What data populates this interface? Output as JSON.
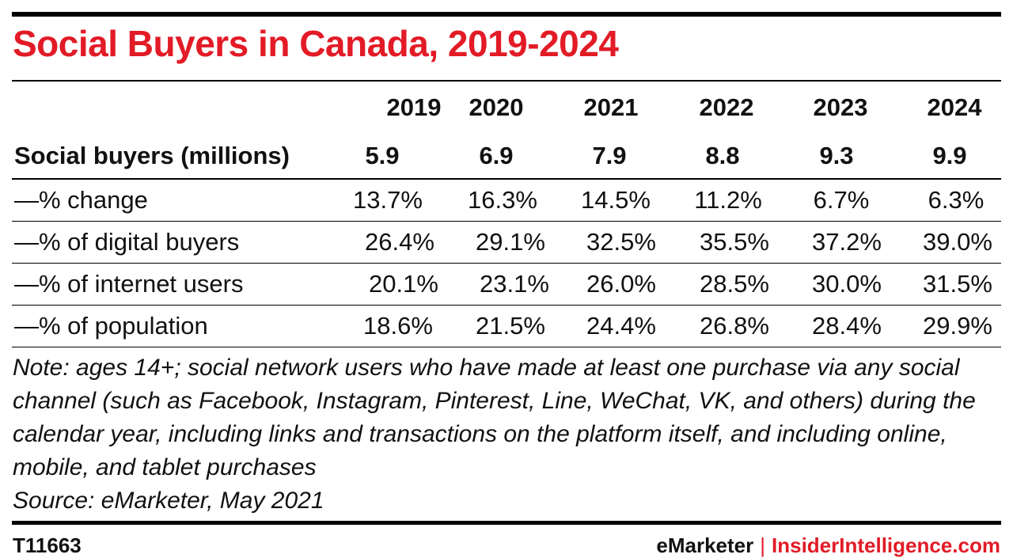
{
  "chart_data": {
    "type": "table",
    "title": "Social Buyers in Canada, 2019-2024",
    "columns": [
      "2019",
      "2020",
      "2021",
      "2022",
      "2023",
      "2024"
    ],
    "rows": [
      {
        "label": "Social buyers (millions)",
        "values": [
          "5.9",
          "6.9",
          "7.9",
          "8.8",
          "9.3",
          "9.9"
        ]
      },
      {
        "label": "—% change",
        "values": [
          "13.7%",
          "16.3%",
          "14.5%",
          "11.2%",
          "6.7%",
          "6.3%"
        ]
      },
      {
        "label": "—% of digital buyers",
        "values": [
          "26.4%",
          "29.1%",
          "32.5%",
          "35.5%",
          "37.2%",
          "39.0%"
        ]
      },
      {
        "label": "—% of internet users",
        "values": [
          "20.1%",
          "23.1%",
          "26.0%",
          "28.5%",
          "30.0%",
          "31.5%"
        ]
      },
      {
        "label": "—% of population",
        "values": [
          "18.6%",
          "21.5%",
          "24.4%",
          "26.8%",
          "28.4%",
          "29.9%"
        ]
      }
    ],
    "note": "Note: ages 14+; social network users who have made at least one purchase via any social channel (such as Facebook, Instagram, Pinterest, Line, WeChat, VK, and others) during the calendar year, including links and transactions on the platform itself, and including online, mobile, and tablet purchases",
    "source": "Source: eMarketer, May 2021"
  },
  "footer": {
    "id": "T11663",
    "brand_left": "eMarketer",
    "separator": "|",
    "brand_right": "InsiderIntelligence.com"
  },
  "colors": {
    "accent": "#e21b26",
    "rules": "#000000"
  }
}
